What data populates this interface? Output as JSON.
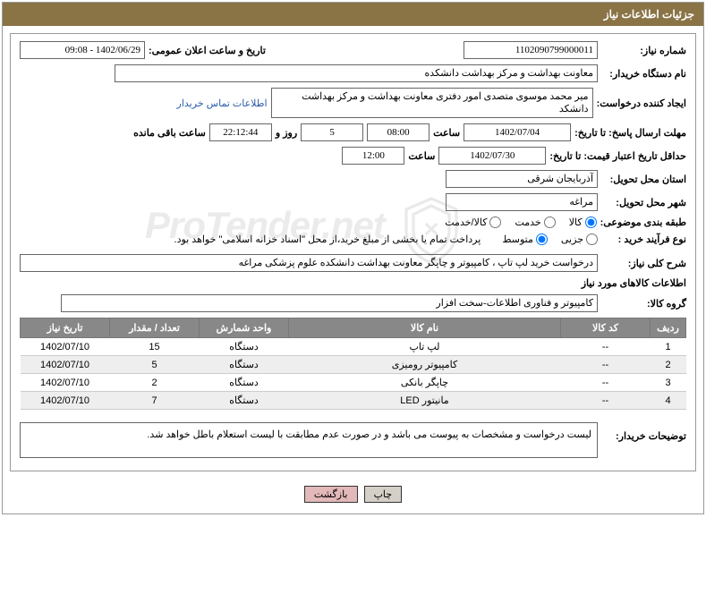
{
  "header": {
    "title": "جزئیات اطلاعات نیاز"
  },
  "fields": {
    "need_no_label": "شماره نیاز:",
    "need_no": "1102090799000011",
    "announce_label": "تاریخ و ساعت اعلان عمومی:",
    "announce": "1402/06/29 - 09:08",
    "buyer_org_label": "نام دستگاه خریدار:",
    "buyer_org": "معاونت بهداشت و مرکز بهداشت دانشکده",
    "creator_label": "ایجاد کننده درخواست:",
    "creator": "میر محمد موسوی متصدی امور دفتری معاونت بهداشت و مرکز بهداشت دانشکد",
    "contact_link": "اطلاعات تماس خریدار",
    "deadline_reply_label": "مهلت ارسال پاسخ: تا تاریخ:",
    "deadline_reply_date": "1402/07/04",
    "time_label": "ساعت",
    "deadline_reply_time": "08:00",
    "days_remaining": "5",
    "days_and": "روز و",
    "time_remaining": "22:12:44",
    "time_remaining_label": "ساعت باقی مانده",
    "min_validity_label": "حداقل تاریخ اعتبار قیمت: تا تاریخ:",
    "min_validity_date": "1402/07/30",
    "min_validity_time": "12:00",
    "province_label": "استان محل تحویل:",
    "province": "آذربایجان شرقی",
    "city_label": "شهر محل تحویل:",
    "city": "مراغه",
    "category_label": "طبقه بندی موضوعی:",
    "cat_goods": "کالا",
    "cat_service": "خدمت",
    "cat_both": "کالا/خدمت",
    "process_label": "نوع فرآیند خرید :",
    "proc_partial": "جزیی",
    "proc_medium": "متوسط",
    "process_note": "پرداخت تمام یا بخشی از مبلغ خرید،از محل \"اسناد خزانه اسلامی\" خواهد بود.",
    "overview_label": "شرح کلی نیاز:",
    "overview": "درخواست خرید لپ تاپ ، کامپیوتر و چاپگر معاونت بهداشت دانشکده علوم پزشکی مراغه",
    "goods_info_title": "اطلاعات کالاهای مورد نیاز",
    "goods_group_label": "گروه کالا:",
    "goods_group": "کامپیوتر و فناوری اطلاعات-سخت افزار",
    "buyer_notes_label": "توضیحات خریدار:",
    "buyer_notes": "لیست درخواست و مشخصات به پیوست می باشد و در صورت عدم مطابقت با لیست استعلام باطل خواهد شد."
  },
  "table": {
    "headers": {
      "row": "ردیف",
      "code": "کد کالا",
      "name": "نام کالا",
      "unit": "واحد شمارش",
      "qty": "تعداد / مقدار",
      "date": "تاریخ نیاز"
    },
    "rows": [
      {
        "row": "1",
        "code": "--",
        "name": "لپ تاپ",
        "unit": "دستگاه",
        "qty": "15",
        "date": "1402/07/10"
      },
      {
        "row": "2",
        "code": "--",
        "name": "کامپیوتر رومیزی",
        "unit": "دستگاه",
        "qty": "5",
        "date": "1402/07/10"
      },
      {
        "row": "3",
        "code": "--",
        "name": "چاپگر بانکی",
        "unit": "دستگاه",
        "qty": "2",
        "date": "1402/07/10"
      },
      {
        "row": "4",
        "code": "--",
        "name": "مانیتور LED",
        "unit": "دستگاه",
        "qty": "7",
        "date": "1402/07/10"
      }
    ]
  },
  "buttons": {
    "print": "چاپ",
    "back": "بازگشت"
  },
  "watermark": "ProTender.net"
}
